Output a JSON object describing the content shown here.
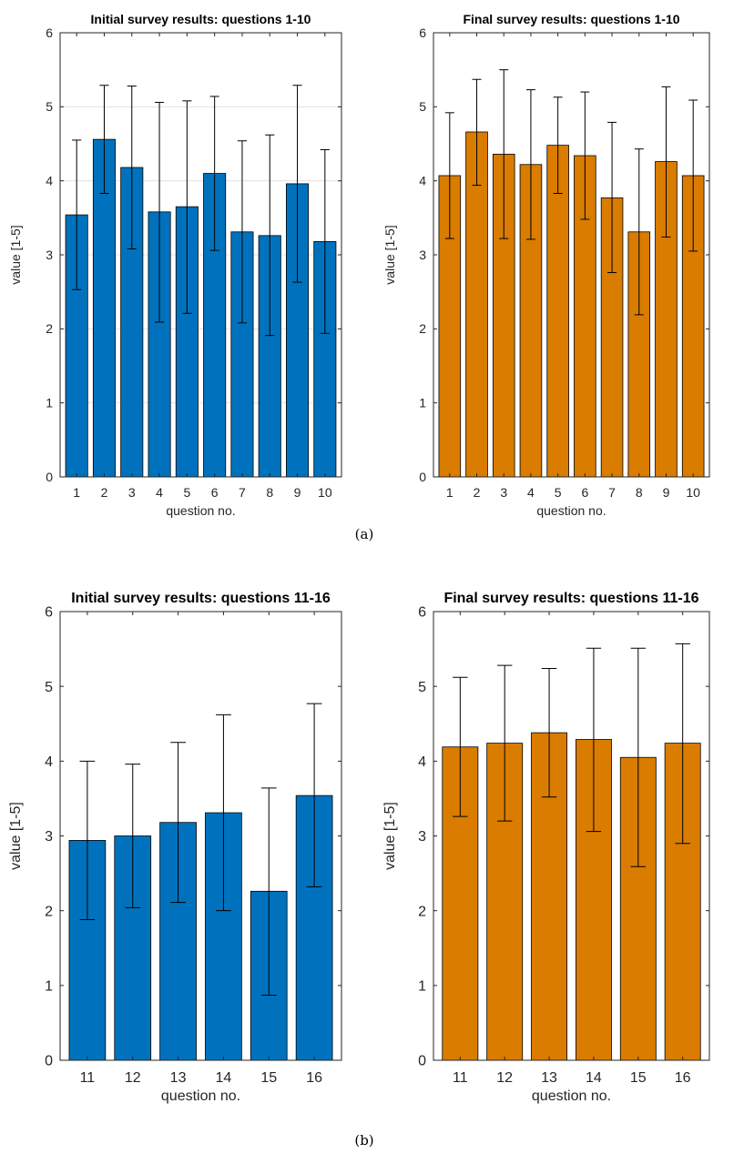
{
  "figure": {
    "captions": [
      "(a)",
      "(b)"
    ]
  },
  "chart_data": [
    {
      "type": "bar",
      "title": "Initial survey results: questions 1-10",
      "xlabel": "question no.",
      "ylabel": "value [1-5]",
      "categories": [
        "1",
        "2",
        "3",
        "4",
        "5",
        "6",
        "7",
        "8",
        "9",
        "10"
      ],
      "values": [
        3.54,
        4.56,
        4.18,
        3.58,
        3.65,
        4.1,
        3.31,
        3.26,
        3.96,
        3.18
      ],
      "error_lower": [
        2.53,
        3.83,
        3.08,
        2.09,
        2.21,
        3.06,
        2.08,
        1.91,
        2.63,
        1.94
      ],
      "error_upper": [
        4.55,
        5.29,
        5.28,
        5.06,
        5.08,
        5.14,
        4.54,
        4.62,
        5.29,
        4.42
      ],
      "ylim": [
        0,
        6
      ],
      "yticks": [
        0,
        1,
        2,
        3,
        4,
        5,
        6
      ],
      "grid": "horizontal",
      "color": "#0072BD"
    },
    {
      "type": "bar",
      "title": "Final survey results: questions 1-10",
      "xlabel": "question no.",
      "ylabel": "value [1-5]",
      "categories": [
        "1",
        "2",
        "3",
        "4",
        "5",
        "6",
        "7",
        "8",
        "9",
        "10"
      ],
      "values": [
        4.07,
        4.66,
        4.36,
        4.22,
        4.48,
        4.34,
        3.77,
        3.31,
        4.26,
        4.07
      ],
      "error_lower": [
        3.22,
        3.94,
        3.22,
        3.21,
        3.83,
        3.48,
        2.76,
        2.19,
        3.24,
        3.05
      ],
      "error_upper": [
        4.92,
        5.37,
        5.5,
        5.23,
        5.13,
        5.2,
        4.79,
        4.43,
        5.27,
        5.09
      ],
      "ylim": [
        0,
        6
      ],
      "yticks": [
        0,
        1,
        2,
        3,
        4,
        5,
        6
      ],
      "grid": "none",
      "color": "#D97C00"
    },
    {
      "type": "bar",
      "title": "Initial survey results: questions 11-16",
      "xlabel": "question no.",
      "ylabel": "value [1-5]",
      "categories": [
        "11",
        "12",
        "13",
        "14",
        "15",
        "16"
      ],
      "values": [
        2.94,
        3.0,
        3.18,
        3.31,
        2.26,
        3.54
      ],
      "error_lower": [
        1.88,
        2.04,
        2.11,
        2.0,
        0.87,
        2.32
      ],
      "error_upper": [
        4.0,
        3.96,
        4.25,
        4.62,
        3.64,
        4.77
      ],
      "ylim": [
        0,
        6
      ],
      "yticks": [
        0,
        1,
        2,
        3,
        4,
        5,
        6
      ],
      "grid": "none",
      "color": "#0072BD"
    },
    {
      "type": "bar",
      "title": "Final survey results: questions 11-16",
      "xlabel": "question no.",
      "ylabel": "value [1-5]",
      "categories": [
        "11",
        "12",
        "13",
        "14",
        "15",
        "16"
      ],
      "values": [
        4.19,
        4.24,
        4.38,
        4.29,
        4.05,
        4.24
      ],
      "error_lower": [
        3.26,
        3.2,
        3.52,
        3.06,
        2.59,
        2.9
      ],
      "error_upper": [
        5.12,
        5.28,
        5.24,
        5.51,
        5.51,
        5.57
      ],
      "ylim": [
        0,
        6
      ],
      "yticks": [
        0,
        1,
        2,
        3,
        4,
        5,
        6
      ],
      "grid": "none",
      "color": "#D97C00"
    }
  ]
}
